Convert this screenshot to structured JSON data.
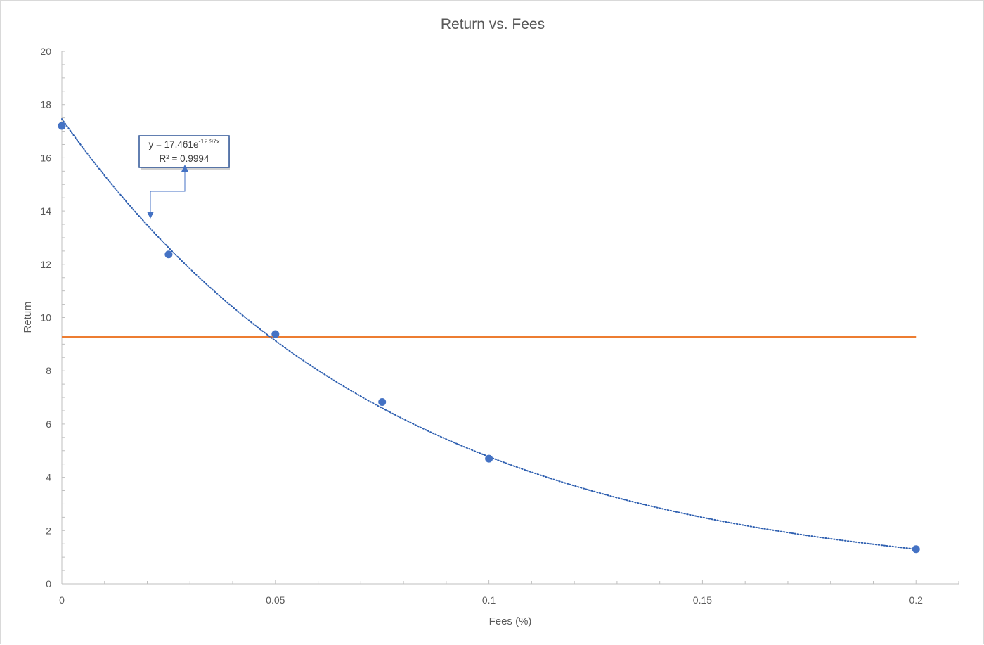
{
  "chart_data": {
    "type": "scatter",
    "title": "Return vs. Fees",
    "xlabel": "Fees (%)",
    "ylabel": "Return",
    "xlim": [
      0,
      0.21
    ],
    "ylim": [
      0,
      20
    ],
    "x_ticks": [
      0,
      0.05,
      0.1,
      0.15,
      0.2
    ],
    "x_tick_labels": [
      "0",
      "0.05",
      "0.1",
      "0.15",
      "0.2"
    ],
    "y_ticks": [
      0,
      2,
      4,
      6,
      8,
      10,
      12,
      14,
      16,
      18,
      20
    ],
    "y_tick_labels": [
      "0",
      "2",
      "4",
      "6",
      "8",
      "10",
      "12",
      "14",
      "16",
      "18",
      "20"
    ],
    "grid": false,
    "series": [
      {
        "type": "scatter",
        "color": "#4472c4",
        "x": [
          0,
          0.025,
          0.05,
          0.075,
          0.1,
          0.2
        ],
        "y": [
          17.2,
          12.37,
          9.38,
          6.83,
          4.7,
          1.3
        ]
      }
    ],
    "reference_line": {
      "orientation": "horizontal",
      "y": 9.27,
      "x_range": [
        0,
        0.2
      ],
      "color": "#ed7d31"
    },
    "trendline": {
      "type": "exponential",
      "a": 17.461,
      "b": -12.97,
      "x_range": [
        0,
        0.2
      ],
      "color": "#2e5fb0",
      "style": "dotted",
      "equation_prefix": "y = 17.461e",
      "equation_exponent": "-12.97x",
      "r_squared_label": "R² = 0.9994"
    }
  }
}
